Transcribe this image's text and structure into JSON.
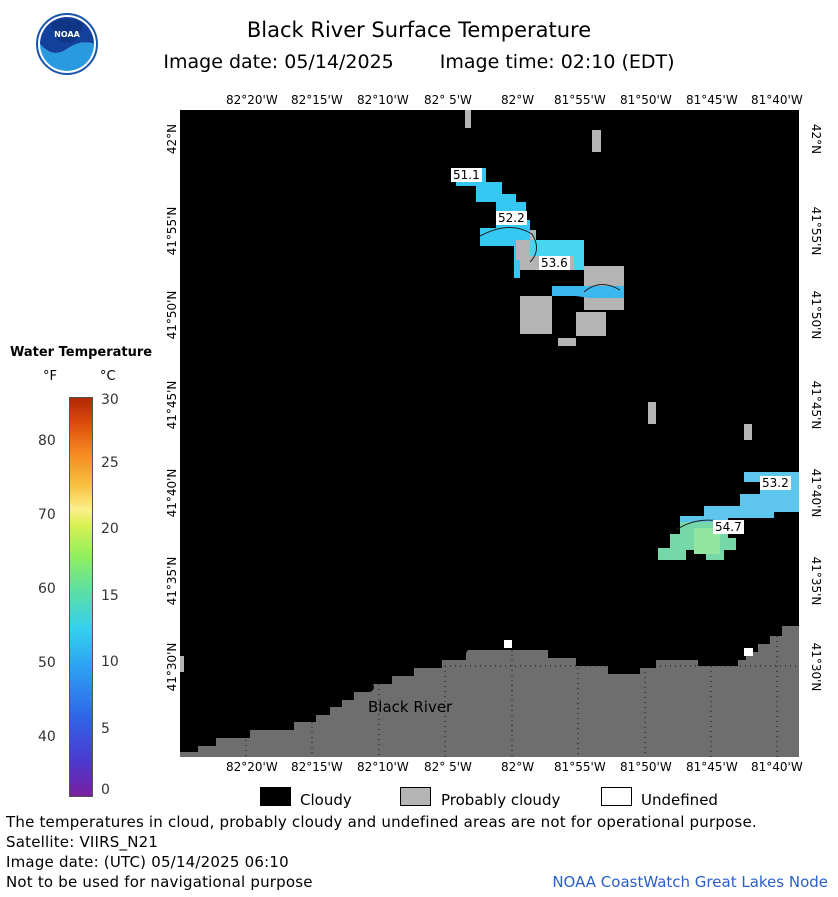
{
  "header": {
    "title": "Black River Surface Temperature",
    "image_date": "Image date: 05/14/2025",
    "image_time": "Image time: 02:10 (EDT)"
  },
  "logo": {
    "text": "NOAA",
    "icon": "noaa-logo-icon"
  },
  "map": {
    "lon_ticks": [
      "82°20'W",
      "82°15'W",
      "82°10'W",
      "82° 5'W",
      "82°W",
      "81°55'W",
      "81°50'W",
      "81°45'W",
      "81°40'W"
    ],
    "lat_ticks": [
      "42°N",
      "41°55'N",
      "41°50'N",
      "41°45'N",
      "41°40'N",
      "41°35'N",
      "41°30'N"
    ],
    "place_label": "Black River",
    "temp_labels": [
      "51.1",
      "52.2",
      "53.6",
      "53.2",
      "54.7"
    ],
    "colors": {
      "cloud": "#000000",
      "land": "#6e6e6e",
      "prob_cloud": "#b4b4b4",
      "undefined": "#ffffff"
    }
  },
  "legend": {
    "title": "Water Temperature",
    "unit_f": "°F",
    "unit_c": "°C",
    "f_ticks": [
      "80",
      "70",
      "60",
      "50",
      "40"
    ],
    "c_ticks": [
      "30",
      "25",
      "20",
      "15",
      "10",
      "5",
      "0"
    ]
  },
  "key": {
    "cloudy": "Cloudy",
    "probably_cloudy": "Probably cloudy",
    "undefined": "Undefined"
  },
  "footer": {
    "disclaimer": "The temperatures in cloud, probably cloudy and undefined areas are not for operational purpose.",
    "satellite": "Satellite: VIIRS_N21",
    "utc_date": "Image date: (UTC) 05/14/2025  06:10",
    "nav_warning": "Not to be used for navigational purpose",
    "credit": "NOAA CoastWatch Great Lakes Node"
  }
}
